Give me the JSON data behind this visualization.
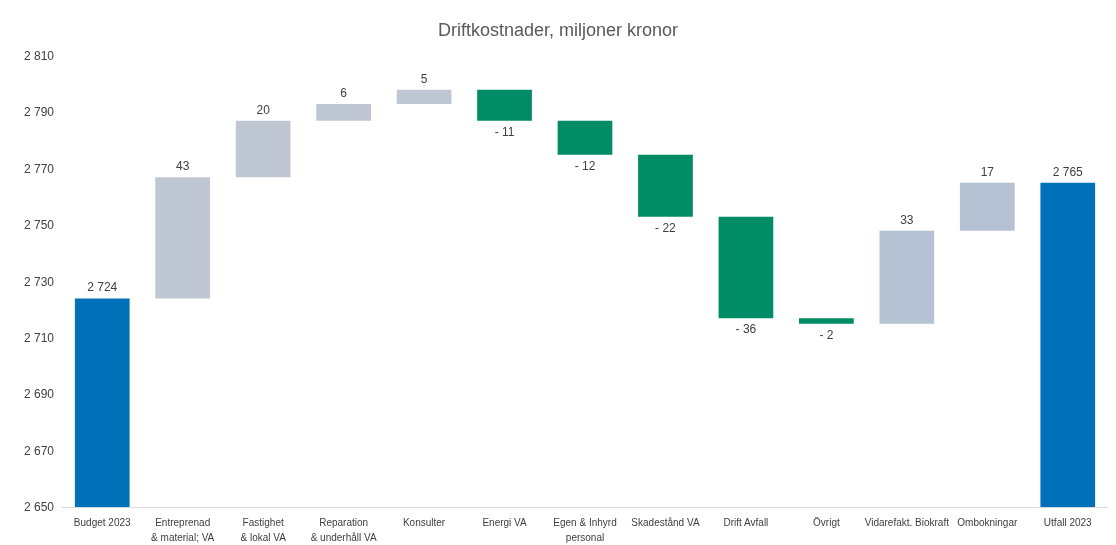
{
  "chart_data": {
    "type": "bar",
    "title": "Driftkostnader, miljoner kronor",
    "categories": [
      "Budget 2023",
      "Entreprenad\n& material; VA",
      "Fastighet\n& lokal VA",
      "Reparation\n& underhåll VA",
      "Konsulter",
      "Energi VA",
      "Egen & Inhyrd\npersonal",
      "Skadestånd VA",
      "Drift Avfall",
      "Övrigt",
      "Vidarefakt. Biokraft",
      "Ombokningar",
      "Utfall 2023"
    ],
    "values": [
      2724,
      43,
      20,
      6,
      5,
      -11,
      -12,
      -22,
      -36,
      -2,
      33,
      17,
      2765
    ],
    "base": [
      null,
      2724,
      2767,
      2787,
      2793,
      2798,
      2787,
      2775,
      2753,
      2717,
      2715,
      2748,
      null
    ],
    "colors": [
      "#0070b8",
      "#bfc8d2",
      "#bfc8d2",
      "#bfc8d2",
      "#bfc8d2",
      "#008c64",
      "#008c64",
      "#008c64",
      "#008c64",
      "#008c64",
      "#b4c2d4",
      "#b4c2d4",
      "#0070b8"
    ],
    "value_labels": [
      "2 724",
      "43",
      "20",
      "6",
      "5",
      "- 11",
      "- 12",
      "- 22",
      "- 36",
      "- 2",
      "33",
      "17",
      "2 765"
    ],
    "ylim": [
      2650,
      2810
    ],
    "yticks": [
      {
        "value": 2650,
        "label": "2 650"
      },
      {
        "value": 2670,
        "label": "2 670"
      },
      {
        "value": 2690,
        "label": "2 690"
      },
      {
        "value": 2710,
        "label": "2 710"
      },
      {
        "value": 2730,
        "label": "2 730"
      },
      {
        "value": 2750,
        "label": "2 750"
      },
      {
        "value": 2770,
        "label": "2 770"
      },
      {
        "value": 2790,
        "label": "2 790"
      },
      {
        "value": 2810,
        "label": "2 810"
      }
    ],
    "grid": false
  }
}
